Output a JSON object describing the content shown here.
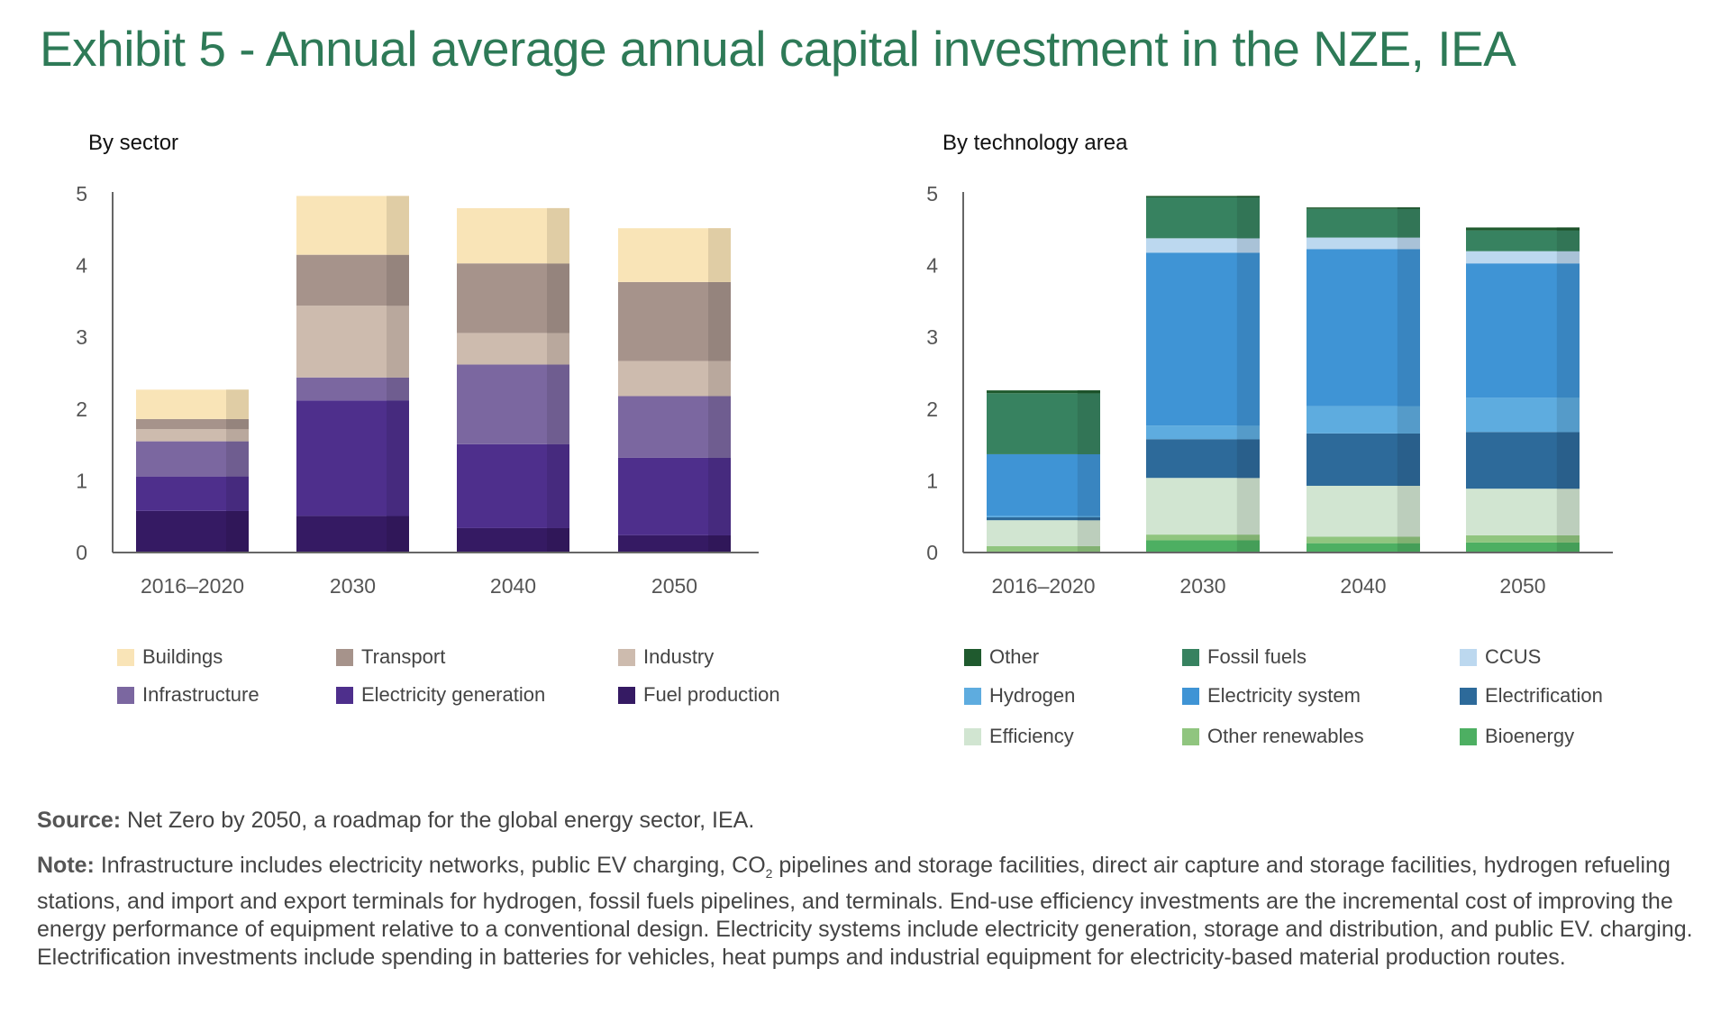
{
  "title": "Exhibit 5 - Annual average annual capital investment in the NZE, IEA",
  "source_label": "Source:",
  "source_text": "Net Zero by 2050, a roadmap for the global energy sector, IEA.",
  "note_label": "Note:",
  "note_text_1": "Infrastructure includes electricity networks, public EV charging, CO",
  "note_sub": "2",
  "note_text_2": " pipelines and storage facilities, direct air capture and storage facilities, hydrogen refueling stations, and import and export terminals for hydrogen, fossil fuels pipelines, and terminals. End-use efficiency investments are the incremental cost of improving the energy performance of equipment relative to a conventional design. Electricity systems include electricity generation, storage and distribution, and public EV. charging. Electrification investments include spending in batteries for vehicles, heat pumps and industrial equipment for electricity-based material production routes.",
  "chart_data": [
    {
      "type": "bar",
      "stacked": true,
      "title": "By sector",
      "xlabel": "",
      "ylabel": "",
      "ylim": [
        0,
        5
      ],
      "yticks": [
        "0",
        "1",
        "2",
        "3",
        "4",
        "5"
      ],
      "categories": [
        "2016–2020",
        "2030",
        "2040",
        "2050"
      ],
      "legend_position": "bottom",
      "series": [
        {
          "name": "Fuel production",
          "color": "#351a63",
          "values": [
            0.58,
            0.51,
            0.34,
            0.24
          ]
        },
        {
          "name": "Electricity generation",
          "color": "#4e2f8c",
          "values": [
            0.48,
            1.61,
            1.17,
            1.08
          ]
        },
        {
          "name": "Infrastructure",
          "color": "#7b67a0",
          "values": [
            0.49,
            0.32,
            1.11,
            0.86
          ]
        },
        {
          "name": "Industry",
          "color": "#cdbbae",
          "values": [
            0.17,
            1.0,
            0.44,
            0.49
          ]
        },
        {
          "name": "Transport",
          "color": "#a6938b",
          "values": [
            0.14,
            0.71,
            0.97,
            1.1
          ]
        },
        {
          "name": "Buildings",
          "color": "#f9e4b7",
          "values": [
            0.41,
            0.82,
            0.77,
            0.75
          ]
        }
      ],
      "legend_order": [
        "Buildings",
        "Transport",
        "Industry",
        "Infrastructure",
        "Electricity generation",
        "Fuel production"
      ]
    },
    {
      "type": "bar",
      "stacked": true,
      "title": "By technology area",
      "xlabel": "",
      "ylabel": "",
      "ylim": [
        0,
        5
      ],
      "yticks": [
        "0",
        "1",
        "2",
        "3",
        "4",
        "5"
      ],
      "categories": [
        "2016–2020",
        "2030",
        "2040",
        "2050"
      ],
      "legend_position": "bottom",
      "series": [
        {
          "name": "Bioenergy",
          "color": "#4daf62",
          "values": [
            0.01,
            0.17,
            0.13,
            0.14
          ]
        },
        {
          "name": "Other renewables",
          "color": "#90c57f",
          "values": [
            0.08,
            0.08,
            0.09,
            0.1
          ]
        },
        {
          "name": "Efficiency",
          "color": "#d1e5d1",
          "values": [
            0.36,
            0.79,
            0.71,
            0.65
          ]
        },
        {
          "name": "Electrification",
          "color": "#2d6a9a",
          "values": [
            0.04,
            0.54,
            0.73,
            0.79
          ]
        },
        {
          "name": "Hydrogen",
          "color": "#5eacdf",
          "values": [
            0.02,
            0.19,
            0.38,
            0.48
          ]
        },
        {
          "name": "Electricity system",
          "color": "#3f94d5",
          "values": [
            0.86,
            2.41,
            2.19,
            1.87
          ]
        },
        {
          "name": "CCUS",
          "color": "#bcd8ef",
          "values": [
            0.0,
            0.2,
            0.16,
            0.17
          ]
        },
        {
          "name": "Fossil fuels",
          "color": "#378260",
          "values": [
            0.85,
            0.57,
            0.4,
            0.29
          ]
        },
        {
          "name": "Other",
          "color": "#1f5a2e",
          "values": [
            0.04,
            0.02,
            0.02,
            0.04
          ]
        }
      ],
      "legend_order": [
        "Other",
        "Fossil fuels",
        "CCUS",
        "Hydrogen",
        "Electricity system",
        "Electrification",
        "Efficiency",
        "Other renewables",
        "Bioenergy"
      ]
    }
  ]
}
